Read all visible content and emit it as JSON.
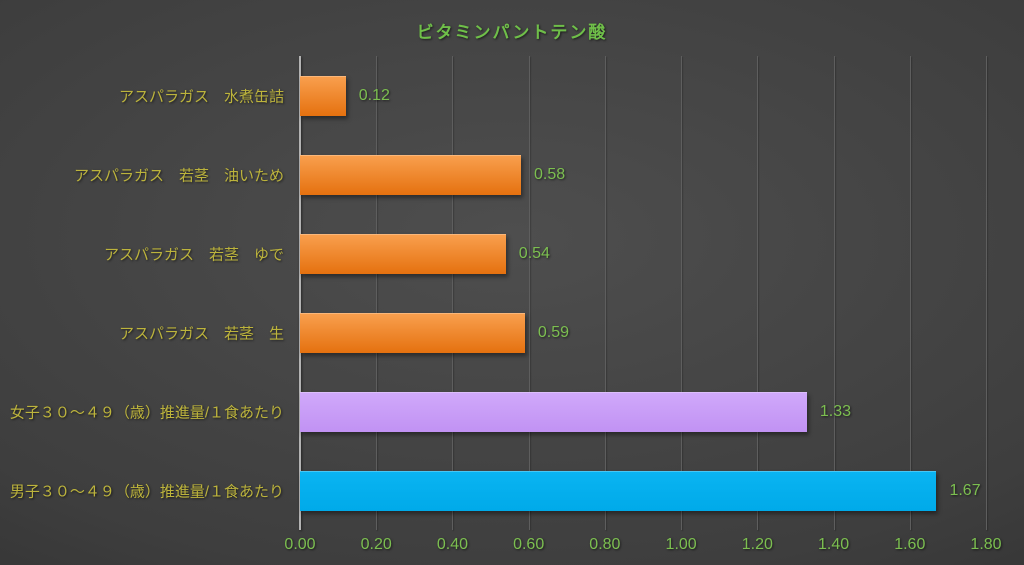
{
  "page": {
    "title": "ビタミンパントテン酸"
  },
  "colors": {
    "background_center": "#4e4e4e",
    "background_edge": "#262626",
    "title": "#6fbf49",
    "category_label": "#bdb43c",
    "value_label": "#7cbf50",
    "tick_label": "#7cbf50",
    "gridline": "#5e5e5e",
    "axis_line": "#b3b3b3",
    "bar_orange_top": "#f9a04f",
    "bar_orange_bottom": "#e5710f",
    "bar_purple_top": "#d0a9fb",
    "bar_purple_bottom": "#c192f3",
    "bar_blue_top": "#0ab4f2",
    "bar_blue_bottom": "#00aae9"
  },
  "chart_data": {
    "type": "bar",
    "orientation": "horizontal",
    "title": "ビタミンパントテン酸",
    "categories": [
      "アスパラガス　水煮缶詰",
      "アスパラガス　若茎　油いため",
      "アスパラガス　若茎　ゆで",
      "アスパラガス　若茎　生",
      "女子３０～４９（歳）推進量/１食あたり",
      "男子３０～４９（歳）推進量/１食あたり"
    ],
    "values": [
      0.12,
      0.58,
      0.54,
      0.59,
      1.33,
      1.67
    ],
    "value_labels": [
      "0.12",
      "0.58",
      "0.54",
      "0.59",
      "1.33",
      "1.67"
    ],
    "bar_color_keys": [
      "orange",
      "orange",
      "orange",
      "orange",
      "purple",
      "blue"
    ],
    "xlim": [
      0,
      1.8
    ],
    "xticks": [
      0,
      0.2,
      0.4,
      0.6,
      0.8,
      1.0,
      1.2,
      1.4,
      1.6,
      1.8
    ],
    "xtick_labels": [
      "0.00",
      "0.20",
      "0.40",
      "0.60",
      "0.80",
      "1.00",
      "1.20",
      "1.40",
      "1.60",
      "1.80"
    ],
    "grid": true,
    "legend": "none",
    "xlabel": "",
    "ylabel": ""
  }
}
